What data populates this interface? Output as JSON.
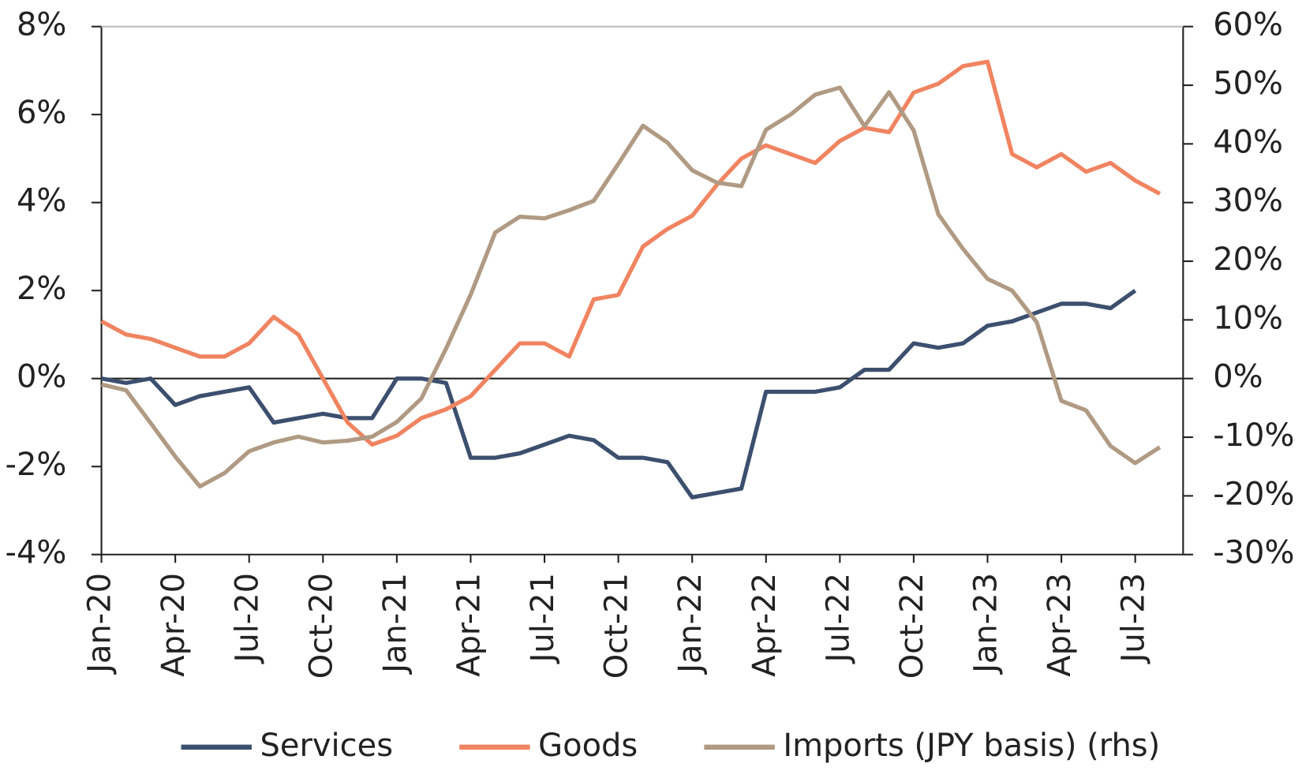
{
  "chart_data": {
    "type": "line",
    "categories": [
      "Jan-20",
      null,
      null,
      "Apr-20",
      null,
      null,
      "Jul-20",
      null,
      null,
      "Oct-20",
      null,
      null,
      "Jan-21",
      null,
      null,
      "Apr-21",
      null,
      null,
      "Jul-21",
      null,
      null,
      "Oct-21",
      null,
      null,
      "Jan-22",
      null,
      null,
      "Apr-22",
      null,
      null,
      "Jul-22",
      null,
      null,
      "Oct-22",
      null,
      null,
      "Jan-23",
      null,
      null,
      "Apr-23",
      null,
      null,
      "Jul-23",
      null
    ],
    "series": [
      {
        "name": "Services",
        "color": "#3d4f6e",
        "values": [
          0.0,
          -0.1,
          0.0,
          -0.6,
          -0.4,
          -0.3,
          -0.2,
          -1.0,
          -0.9,
          -0.8,
          -0.9,
          -0.9,
          0.0,
          0.0,
          -0.1,
          -1.8,
          -1.8,
          -1.7,
          -1.5,
          -1.3,
          -1.4,
          -1.8,
          -1.8,
          -1.9,
          -2.7,
          -2.6,
          -2.5,
          -0.3,
          -0.3,
          -0.3,
          -0.2,
          0.2,
          0.2,
          0.8,
          0.7,
          0.8,
          1.2,
          1.3,
          1.5,
          1.7,
          1.7,
          1.6,
          2.0,
          null
        ]
      },
      {
        "name": "Goods",
        "color": "#f08461",
        "values": [
          1.3,
          1.0,
          0.9,
          0.7,
          0.5,
          0.5,
          0.8,
          1.4,
          1.0,
          0.0,
          -1.0,
          -1.5,
          -1.3,
          -0.9,
          -0.7,
          -0.4,
          0.2,
          0.8,
          0.8,
          0.5,
          1.8,
          1.9,
          3.0,
          3.4,
          3.7,
          4.4,
          5.0,
          5.3,
          5.1,
          4.9,
          5.4,
          5.7,
          5.6,
          6.5,
          6.7,
          7.1,
          7.2,
          5.1,
          4.8,
          5.1,
          4.7,
          4.9,
          4.5,
          4.2
        ]
      },
      {
        "name": "Imports (JPY basis) (rhs)",
        "color": "#b09a83",
        "axis": "y2",
        "values": [
          -1.0,
          -2.0,
          -7.6,
          -13.3,
          -18.4,
          -16.1,
          -12.4,
          -10.9,
          -9.9,
          -10.9,
          -10.6,
          -9.9,
          -7.4,
          -3.4,
          5.1,
          14.3,
          24.9,
          27.6,
          27.3,
          28.7,
          30.3,
          36.6,
          43.1,
          40.2,
          35.5,
          33.4,
          32.8,
          42.4,
          45.0,
          48.4,
          49.6,
          43.0,
          48.8,
          42.3,
          28.0,
          22.1,
          17.0,
          15.0,
          9.6,
          -3.8,
          -5.4,
          -11.5,
          -14.4,
          -11.7
        ]
      }
    ],
    "ylim": [
      -4,
      8
    ],
    "yticks": [
      {
        "value": -4,
        "label": "-4%"
      },
      {
        "value": -2,
        "label": "-2%"
      },
      {
        "value": 0,
        "label": "0%"
      },
      {
        "value": 2,
        "label": "2%"
      },
      {
        "value": 4,
        "label": "4%"
      },
      {
        "value": 6,
        "label": "6%"
      },
      {
        "value": 8,
        "label": "8%"
      }
    ],
    "y2lim": [
      -30,
      60
    ],
    "y2ticks": [
      {
        "value": -30,
        "label": "-30%"
      },
      {
        "value": -20,
        "label": "-20%"
      },
      {
        "value": -10,
        "label": "-10%"
      },
      {
        "value": 0,
        "label": "0%"
      },
      {
        "value": 10,
        "label": "10%"
      },
      {
        "value": 20,
        "label": "20%"
      },
      {
        "value": 30,
        "label": "30%"
      },
      {
        "value": 40,
        "label": "40%"
      },
      {
        "value": 50,
        "label": "50%"
      },
      {
        "value": 60,
        "label": "60%"
      }
    ],
    "legend": "bottom"
  }
}
